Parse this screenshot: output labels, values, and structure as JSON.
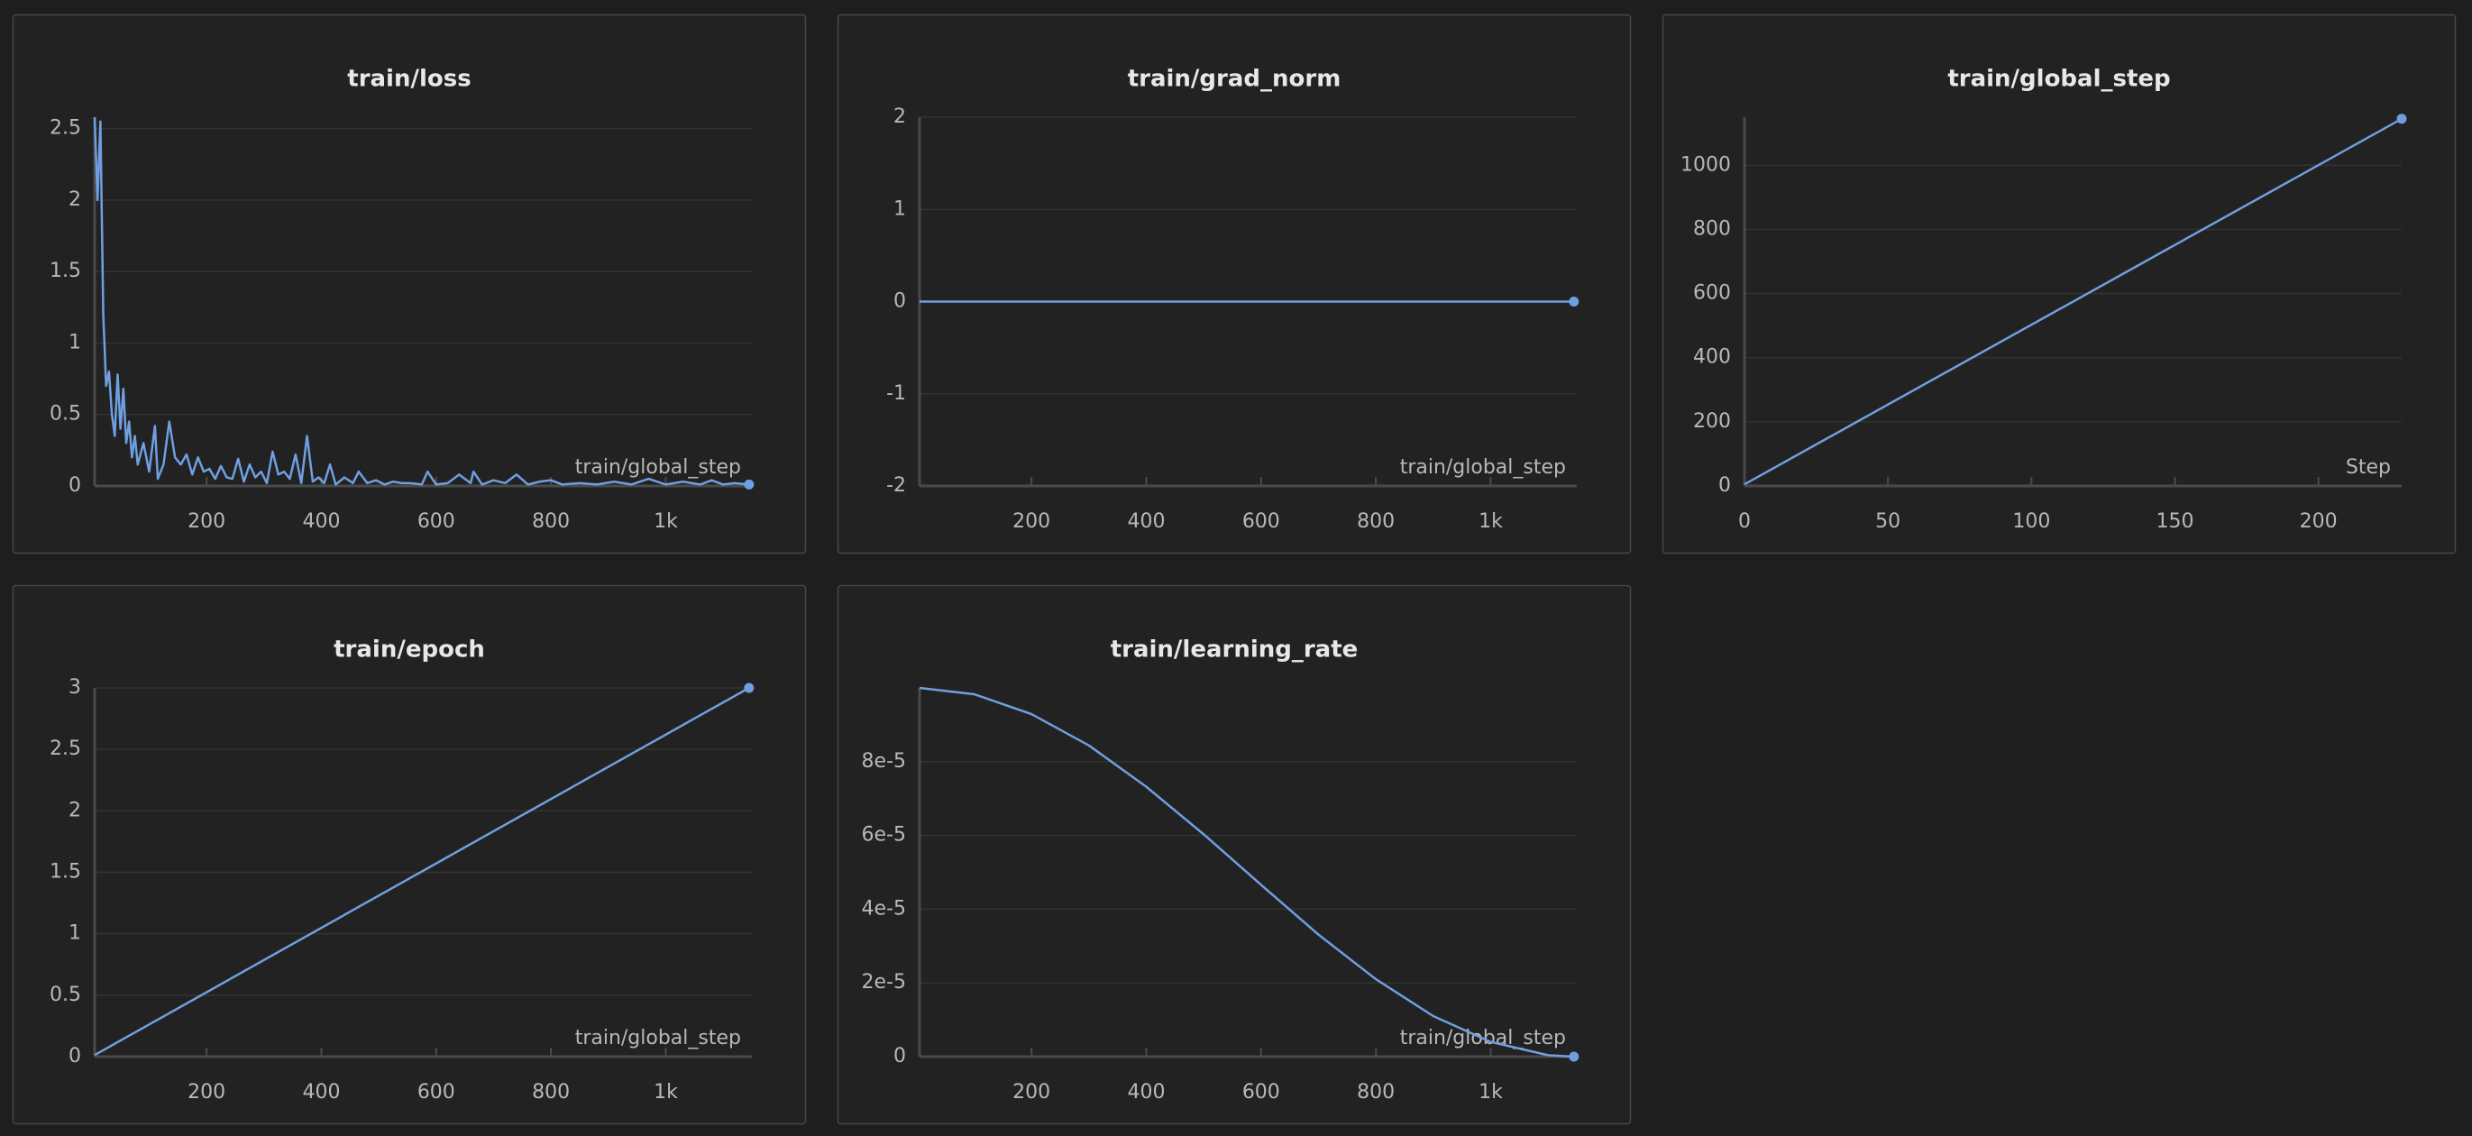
{
  "chart_data": [
    {
      "type": "line",
      "title": "train/loss",
      "x_label": "train/global_step",
      "color": "#6f9fe0",
      "x": [
        5,
        10,
        15,
        20,
        25,
        30,
        35,
        40,
        45,
        50,
        55,
        60,
        65,
        70,
        75,
        80,
        90,
        100,
        110,
        115,
        125,
        135,
        145,
        155,
        165,
        175,
        185,
        195,
        205,
        215,
        225,
        235,
        245,
        255,
        265,
        275,
        285,
        295,
        305,
        315,
        325,
        335,
        345,
        355,
        365,
        375,
        385,
        395,
        405,
        415,
        425,
        440,
        455,
        465,
        480,
        495,
        510,
        525,
        540,
        555,
        575,
        585,
        600,
        620,
        640,
        660,
        665,
        680,
        700,
        720,
        740,
        760,
        780,
        800,
        820,
        850,
        880,
        910,
        940,
        970,
        1000,
        1030,
        1060,
        1080,
        1100,
        1120,
        1145
      ],
      "values": [
        2.58,
        2.0,
        2.55,
        1.2,
        0.7,
        0.8,
        0.5,
        0.35,
        0.78,
        0.4,
        0.68,
        0.3,
        0.45,
        0.2,
        0.35,
        0.15,
        0.3,
        0.1,
        0.42,
        0.05,
        0.15,
        0.45,
        0.2,
        0.15,
        0.22,
        0.08,
        0.2,
        0.1,
        0.12,
        0.05,
        0.14,
        0.06,
        0.05,
        0.19,
        0.03,
        0.15,
        0.06,
        0.1,
        0.02,
        0.24,
        0.08,
        0.1,
        0.05,
        0.22,
        0.02,
        0.35,
        0.03,
        0.06,
        0.02,
        0.15,
        0.01,
        0.06,
        0.02,
        0.1,
        0.02,
        0.04,
        0.01,
        0.03,
        0.02,
        0.02,
        0.01,
        0.1,
        0.01,
        0.02,
        0.08,
        0.02,
        0.1,
        0.01,
        0.04,
        0.02,
        0.08,
        0.01,
        0.03,
        0.04,
        0.01,
        0.02,
        0.01,
        0.03,
        0.01,
        0.05,
        0.01,
        0.03,
        0.01,
        0.04,
        0.01,
        0.02,
        0.01
      ],
      "xlim": [
        5,
        1150
      ],
      "ylim": [
        0,
        2.58
      ],
      "xticks": [
        200,
        400,
        600,
        800,
        {
          "value": 1000,
          "label": "1k"
        }
      ],
      "yticks": [
        0,
        0.5,
        1,
        1.5,
        2,
        2.5
      ]
    },
    {
      "type": "line",
      "title": "train/grad_norm",
      "x_label": "train/global_step",
      "color": "#6f9fe0",
      "x": [
        5,
        300,
        600,
        900,
        1145
      ],
      "values": [
        0,
        0,
        0,
        0,
        0
      ],
      "xlim": [
        5,
        1150
      ],
      "ylim": [
        -2,
        2
      ],
      "xticks": [
        200,
        400,
        600,
        800,
        {
          "value": 1000,
          "label": "1k"
        }
      ],
      "yticks": [
        -2,
        -1,
        0,
        1,
        2
      ]
    },
    {
      "type": "line",
      "title": "train/global_step",
      "x_label": "Step",
      "color": "#6f9fe0",
      "x": [
        0,
        229
      ],
      "values": [
        5,
        1145
      ],
      "xlim": [
        0,
        229
      ],
      "ylim": [
        0,
        1150
      ],
      "xticks": [
        0,
        50,
        100,
        150,
        200
      ],
      "yticks": [
        0,
        200,
        400,
        600,
        800,
        1000
      ]
    },
    {
      "type": "line",
      "title": "train/epoch",
      "x_label": "train/global_step",
      "color": "#6f9fe0",
      "x": [
        5,
        1145
      ],
      "values": [
        0.0131,
        3
      ],
      "xlim": [
        5,
        1150
      ],
      "ylim": [
        0,
        3
      ],
      "xticks": [
        200,
        400,
        600,
        800,
        {
          "value": 1000,
          "label": "1k"
        }
      ],
      "yticks": [
        0,
        0.5,
        1,
        1.5,
        2,
        2.5,
        3
      ]
    },
    {
      "type": "line",
      "title": "train/learning_rate",
      "x_label": "train/global_step",
      "color": "#6f9fe0",
      "x": [
        5,
        100,
        200,
        300,
        400,
        500,
        600,
        700,
        800,
        900,
        1000,
        1100,
        1145
      ],
      "values": [
        0.0001,
        9.83e-05,
        9.29e-05,
        8.44e-05,
        7.32e-05,
        6.03e-05,
        4.66e-05,
        3.31e-05,
        2.1e-05,
        1.1e-05,
        4e-06,
        4e-07,
        0
      ],
      "xlim": [
        5,
        1150
      ],
      "ylim": [
        0,
        0.0001
      ],
      "xticks": [
        200,
        400,
        600,
        800,
        {
          "value": 1000,
          "label": "1k"
        }
      ],
      "yticks": [
        0,
        {
          "value": 2e-05,
          "label": "2e-5"
        },
        {
          "value": 4e-05,
          "label": "4e-5"
        },
        {
          "value": 6e-05,
          "label": "6e-5"
        },
        {
          "value": 8e-05,
          "label": "8e-5"
        }
      ]
    }
  ]
}
